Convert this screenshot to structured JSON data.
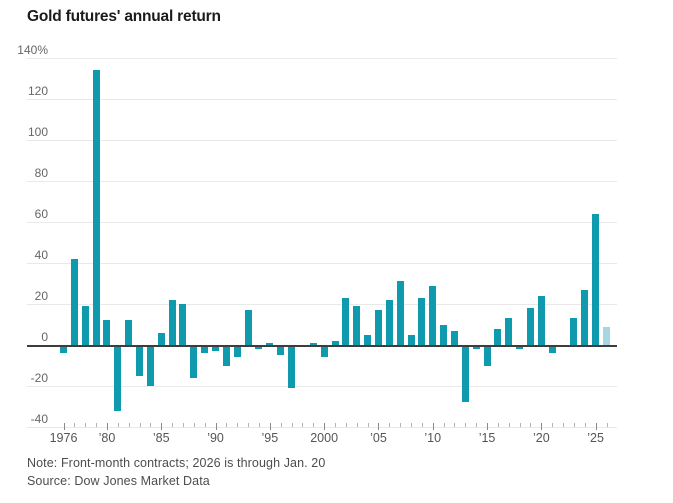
{
  "chart_data": {
    "type": "bar",
    "title": "Gold futures' annual return",
    "unit": "%",
    "categories": [
      1976,
      1977,
      1978,
      1979,
      1980,
      1981,
      1982,
      1983,
      1984,
      1985,
      1986,
      1987,
      1988,
      1989,
      1990,
      1991,
      1992,
      1993,
      1994,
      1995,
      1996,
      1997,
      1998,
      1999,
      2000,
      2001,
      2002,
      2003,
      2004,
      2005,
      2006,
      2007,
      2008,
      2009,
      2010,
      2011,
      2012,
      2013,
      2014,
      2015,
      2016,
      2017,
      2018,
      2019,
      2020,
      2021,
      2022,
      2023,
      2024,
      2025,
      2026
    ],
    "values": [
      -4,
      42,
      19,
      134,
      12,
      -32,
      12,
      -15,
      -20,
      6,
      22,
      20,
      -16,
      -4,
      -3,
      -10,
      -6,
      17,
      -2,
      1,
      -5,
      -21,
      -1,
      1,
      -6,
      2,
      23,
      19,
      5,
      17,
      22,
      31,
      5,
      23,
      29,
      10,
      7,
      -28,
      -2,
      -10,
      8,
      13,
      -2,
      18,
      24,
      -4,
      -1,
      13,
      27,
      64,
      9
    ],
    "partial_year": 2026,
    "ylim": [
      -40,
      140
    ],
    "y_ticks": [
      140,
      120,
      100,
      80,
      60,
      40,
      20,
      0,
      -20,
      -40
    ],
    "y_top_tick_label": "140%",
    "x_tick_labels": {
      "1976": "1976",
      "1980": "’80",
      "1985": "’85",
      "1990": "’90",
      "1995": "’95",
      "2000": "2000",
      "2005": "’05",
      "2010": "’10",
      "2015": "’15",
      "2020": "’20",
      "2025": "’25"
    },
    "grid": true,
    "legend": "none"
  },
  "footer": {
    "note": "Note: Front-month contracts; 2026 is through Jan. 20",
    "source": "Source: Dow Jones Market Data"
  },
  "colors": {
    "bar": "#0f9aae",
    "bar_partial": "#a8d5e2",
    "grid": "#e9e9e9",
    "zero_axis": "#3d3d3d"
  }
}
